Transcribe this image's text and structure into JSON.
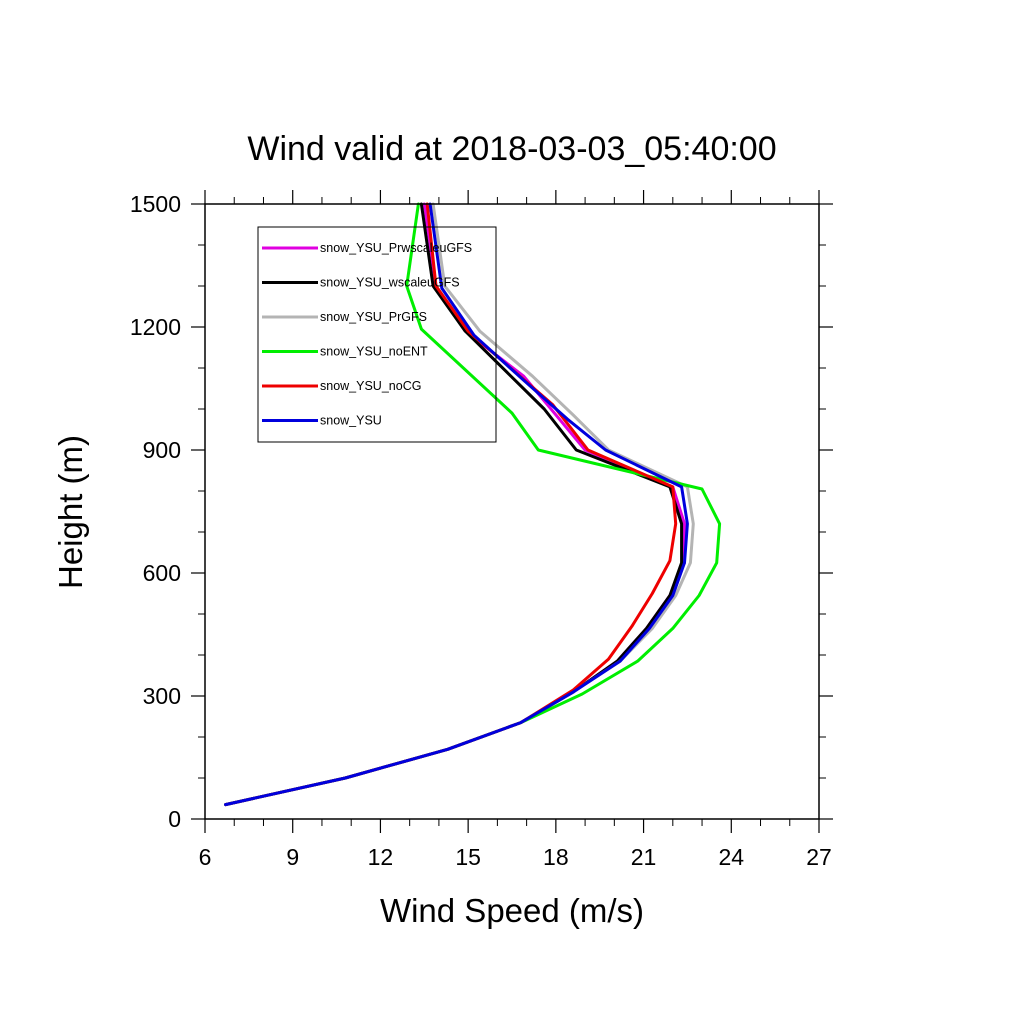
{
  "chart_data": {
    "type": "line",
    "title": "Wind valid at 2018-03-03_05:40:00",
    "xlabel": "Wind Speed (m/s)",
    "ylabel": "Height (m)",
    "xlim": [
      6,
      27
    ],
    "ylim": [
      0,
      1500
    ],
    "x_ticks": [
      6,
      9,
      12,
      15,
      18,
      21,
      24,
      27
    ],
    "y_ticks": [
      0,
      300,
      600,
      900,
      1200,
      1500
    ],
    "legend_position": "top-left",
    "grid": false,
    "series": [
      {
        "name": "snow_YSU_PrwscaleuGFS",
        "color": "#e000e0",
        "speed": [
          6.7,
          10.8,
          14.3,
          16.8,
          18.6,
          20.1,
          21.1,
          21.9,
          22.4,
          22.4,
          22.0,
          19.0,
          16.9,
          14.9,
          13.9,
          13.5
        ],
        "height": [
          35,
          100,
          170,
          235,
          310,
          385,
          465,
          545,
          625,
          720,
          810,
          900,
          1080,
          1190,
          1300,
          1500
        ]
      },
      {
        "name": "snow_YSU_wscaleuGFS",
        "color": "#000000",
        "speed": [
          6.7,
          10.8,
          14.3,
          16.8,
          18.6,
          20.1,
          21.1,
          21.9,
          22.3,
          22.3,
          21.9,
          18.7,
          17.6,
          14.9,
          13.8,
          13.4
        ],
        "height": [
          35,
          100,
          170,
          235,
          310,
          385,
          465,
          545,
          625,
          720,
          810,
          900,
          1000,
          1190,
          1300,
          1500
        ]
      },
      {
        "name": "snow_YSU_PrGFS",
        "color": "#b4b4b4",
        "speed": [
          6.7,
          10.8,
          14.3,
          16.8,
          18.6,
          20.2,
          21.3,
          22.1,
          22.6,
          22.7,
          22.5,
          19.8,
          18.6,
          17.2,
          15.4,
          14.2,
          13.8
        ],
        "height": [
          35,
          100,
          170,
          235,
          310,
          385,
          465,
          545,
          625,
          720,
          810,
          900,
          985,
          1080,
          1190,
          1300,
          1500
        ]
      },
      {
        "name": "snow_YSU_noENT",
        "color": "#00ee00",
        "speed": [
          6.7,
          10.8,
          14.3,
          16.8,
          18.9,
          20.8,
          22.0,
          22.9,
          23.5,
          23.6,
          23.0,
          17.4,
          16.5,
          13.4,
          12.9,
          13.3
        ],
        "height": [
          35,
          100,
          170,
          235,
          305,
          385,
          465,
          545,
          625,
          720,
          805,
          900,
          990,
          1195,
          1300,
          1500
        ]
      },
      {
        "name": "snow_YSU_noCG",
        "color": "#ee0000",
        "speed": [
          6.7,
          10.8,
          14.3,
          16.8,
          18.6,
          19.8,
          20.6,
          21.3,
          21.9,
          22.1,
          22.0,
          19.1,
          17.9,
          15.0,
          13.9,
          13.6
        ],
        "height": [
          35,
          100,
          170,
          235,
          315,
          390,
          470,
          550,
          630,
          720,
          810,
          900,
          1010,
          1190,
          1300,
          1500
        ]
      },
      {
        "name": "snow_YSU",
        "color": "#0000dd",
        "speed": [
          6.7,
          10.8,
          14.3,
          16.8,
          18.6,
          20.2,
          21.2,
          22.0,
          22.4,
          22.5,
          22.3,
          19.7,
          18.4,
          16.9,
          15.2,
          14.1,
          13.7
        ],
        "height": [
          35,
          100,
          170,
          235,
          310,
          385,
          465,
          545,
          625,
          720,
          810,
          900,
          975,
          1070,
          1180,
          1295,
          1500
        ]
      }
    ]
  }
}
